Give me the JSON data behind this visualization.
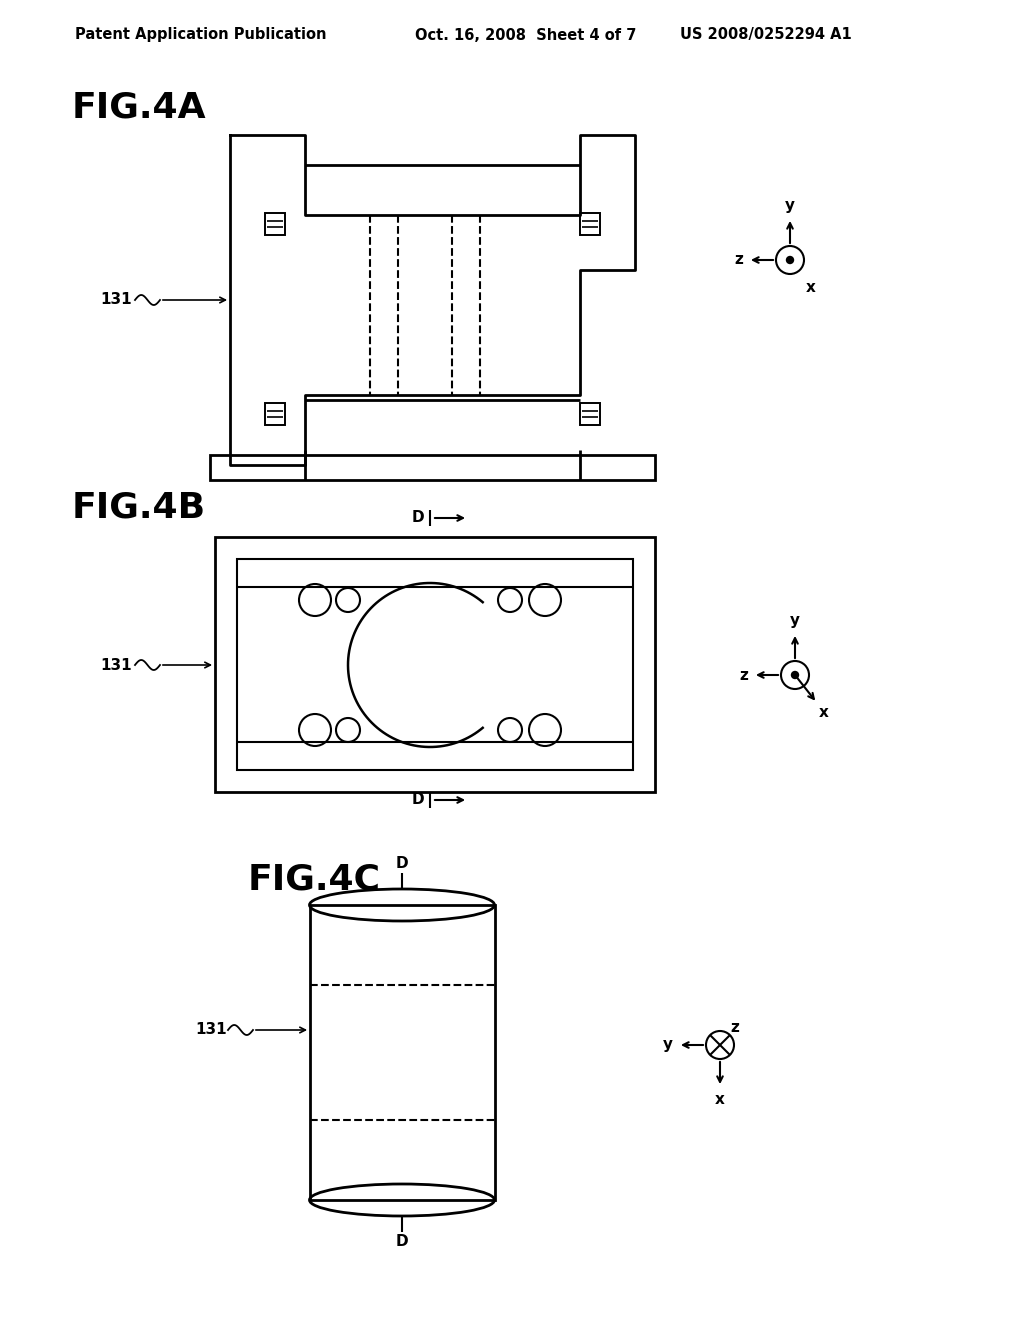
{
  "bg_color": "#ffffff",
  "header_text": "Patent Application Publication",
  "header_date": "Oct. 16, 2008  Sheet 4 of 7",
  "header_patent": "US 2008/0252294 A1",
  "fig4a_label": "FIG.4A",
  "fig4b_label": "FIG.4B",
  "fig4c_label": "FIG.4C",
  "label_131": "131"
}
